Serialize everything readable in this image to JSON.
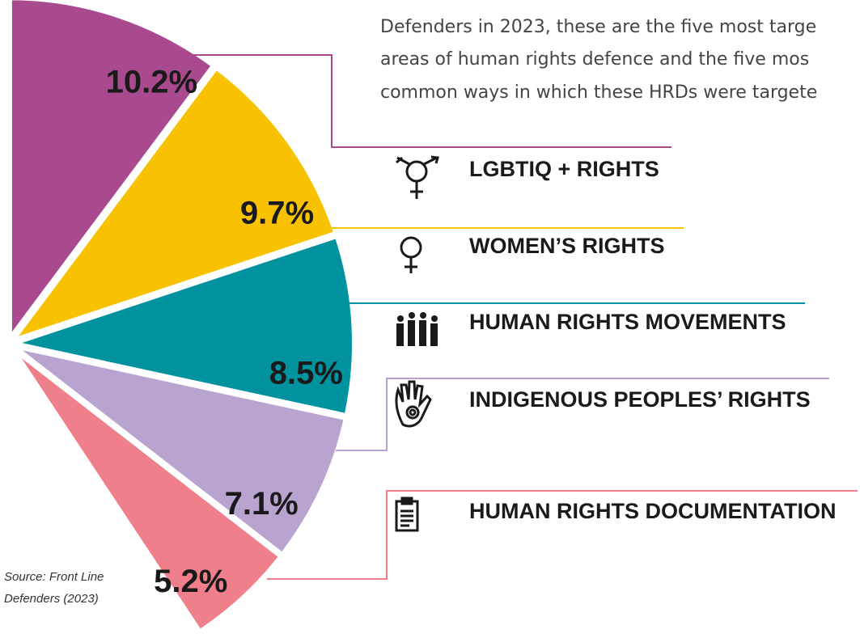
{
  "intro": [
    "Defenders in 2023, these are the five most targe",
    "areas of human rights defence and the five mos",
    "common ways in which these HRDs were targete"
  ],
  "source": [
    "Source: Front Line",
    "Defenders (2023)"
  ],
  "chart_data": {
    "type": "pie",
    "categories": [
      "LGBTIQ + RIGHTS",
      "WOMEN’S RIGHTS",
      "HUMAN RIGHTS MOVEMENTS",
      "INDIGENOUS PEOPLES’ RIGHTS",
      "HUMAN RIGHTS DOCUMENTATION"
    ],
    "values": [
      10.2,
      9.7,
      8.5,
      7.1,
      5.2
    ],
    "value_labels": [
      "10.2%",
      "9.7%",
      "8.5%",
      "7.1%",
      "5.2%"
    ],
    "colors": [
      "#a94a8f",
      "#f9c200",
      "#00929f",
      "#b9a3cf",
      "#ef7f8a"
    ]
  }
}
